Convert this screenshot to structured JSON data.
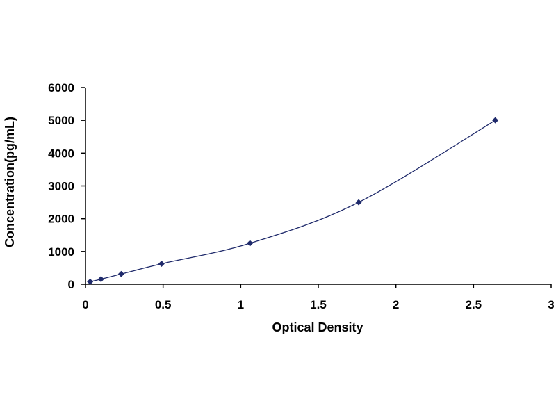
{
  "chart_data": {
    "type": "scatter",
    "title": "",
    "xlabel": "Optical Density",
    "ylabel": "Concentration(pg/mL)",
    "xlim": [
      0,
      3
    ],
    "ylim": [
      0,
      6000
    ],
    "x_ticks": [
      0,
      0.5,
      1,
      1.5,
      2,
      2.5,
      3
    ],
    "x_tick_labels": [
      "0",
      "0.5",
      "1",
      "1.5",
      "2",
      "2.5",
      "3"
    ],
    "y_ticks": [
      0,
      1000,
      2000,
      3000,
      4000,
      5000,
      6000
    ],
    "y_tick_labels": [
      "0",
      "1000",
      "2000",
      "3000",
      "4000",
      "5000",
      "6000"
    ],
    "grid": false,
    "legend": "none",
    "series": [
      {
        "marker": "diamond",
        "color": "#1f2a6b",
        "trendline": "smooth",
        "x": [
          0.03,
          0.1,
          0.23,
          0.49,
          1.06,
          1.76,
          2.64
        ],
        "y": [
          78,
          156,
          312,
          625,
          1250,
          2500,
          5000
        ]
      }
    ]
  }
}
